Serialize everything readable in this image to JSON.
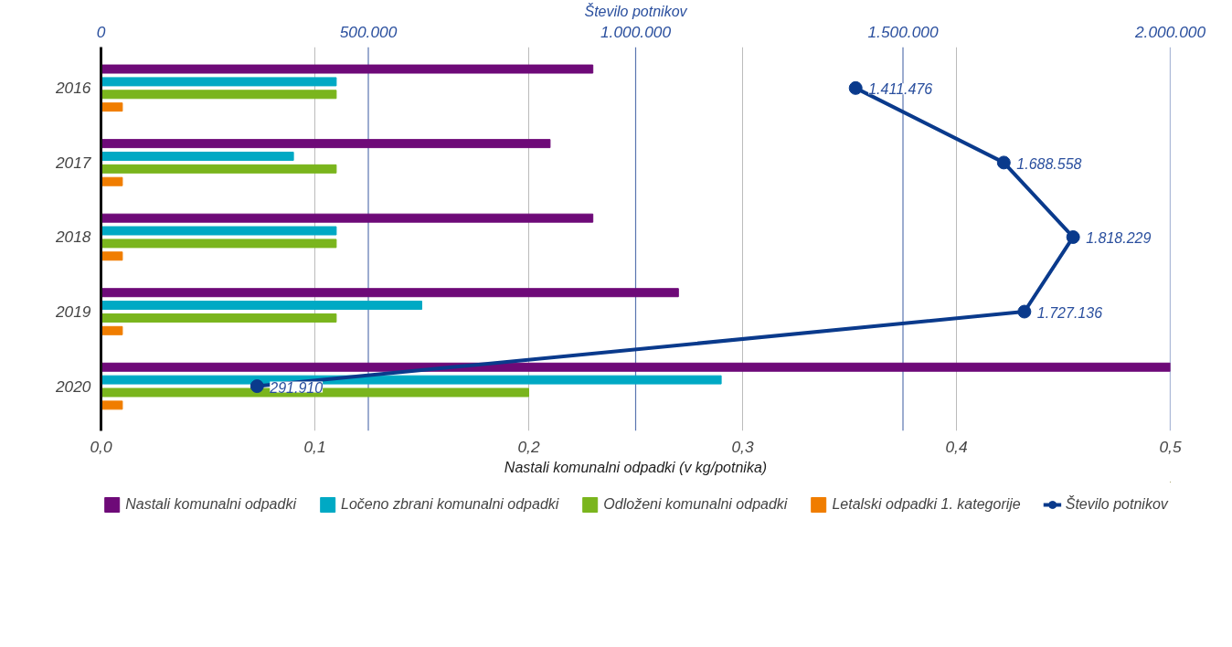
{
  "chart_data": {
    "type": "bar",
    "orientation": "horizontal",
    "categories": [
      "2016",
      "2017",
      "2018",
      "2019",
      "2020"
    ],
    "xlabel": "Nastali komunalni odpadki (v kg/potnika)",
    "x2label": "Število potnikov",
    "xlim": [
      0,
      0.5
    ],
    "xticks": [
      {
        "value": 0,
        "label": "0,0"
      },
      {
        "value": 0.1,
        "label": "0,1"
      },
      {
        "value": 0.2,
        "label": "0,2"
      },
      {
        "value": 0.3,
        "label": "0,3"
      },
      {
        "value": 0.4,
        "label": "0,4"
      },
      {
        "value": 0.5,
        "label": "0,5"
      }
    ],
    "x2lim": [
      0,
      2000000
    ],
    "x2ticks": [
      {
        "value": 0,
        "label": "0"
      },
      {
        "value": 500000,
        "label": "500.000"
      },
      {
        "value": 1000000,
        "label": "1.000.000"
      },
      {
        "value": 1500000,
        "label": "1.500.000"
      },
      {
        "value": 2000000,
        "label": "2.000.000"
      }
    ],
    "grid": "x",
    "legend": "bottom",
    "series": [
      {
        "name": "Nastali komunalni odpadki",
        "color": "#6e0a78",
        "values": [
          0.23,
          0.21,
          0.23,
          0.27,
          0.5
        ]
      },
      {
        "name": "Ločeno zbrani komunalni odpadki",
        "color": "#00a9c4",
        "values": [
          0.11,
          0.09,
          0.11,
          0.15,
          0.29
        ]
      },
      {
        "name": "Odloženi komunalni odpadki",
        "color": "#7ab51d",
        "values": [
          0.11,
          0.11,
          0.11,
          0.11,
          0.2
        ]
      },
      {
        "name": "Letalski odpadki 1. kategorije",
        "color": "#f07d00",
        "values": [
          0.01,
          0.01,
          0.01,
          0.01,
          0.01
        ]
      },
      {
        "name": "Število potnikov",
        "type": "line",
        "axis": "x2",
        "color": "#0a3a8c",
        "marker": "circle",
        "line_style": "solid",
        "values": [
          1411476,
          1688558,
          1818229,
          1727136,
          291910
        ],
        "value_labels": [
          "1.411.476",
          "1.688.558",
          "1.818.229",
          "1.727.136",
          "291.910"
        ]
      }
    ]
  }
}
